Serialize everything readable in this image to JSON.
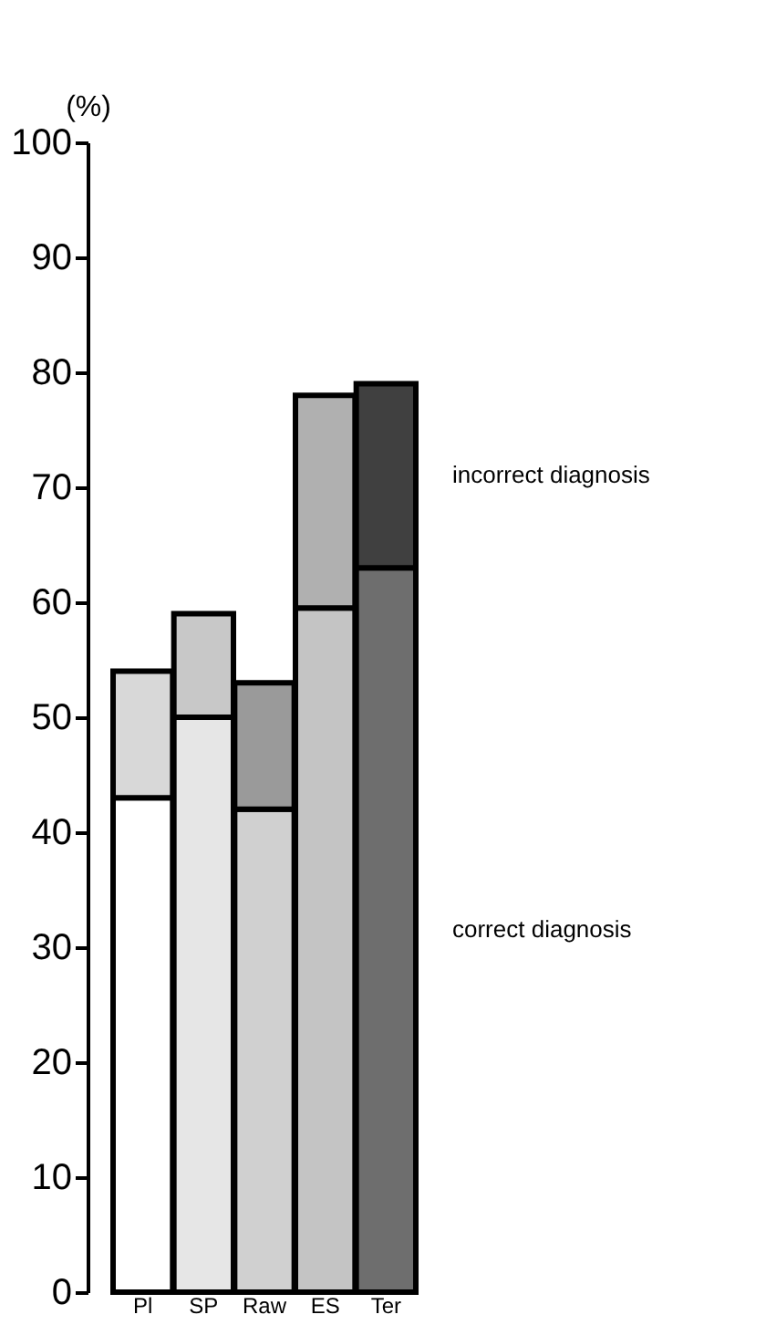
{
  "chart_data": {
    "type": "bar",
    "stacked": true,
    "ylabel": "(%)",
    "categories": [
      "Pl",
      "SP",
      "Raw",
      "ES",
      "Ter"
    ],
    "series": [
      {
        "name": "correct diagnosis",
        "colors": [
          "#ffffff",
          "#e6e6e6",
          "#d0d0d0",
          "#c4c4c4",
          "#6e6e6e"
        ],
        "values": [
          43,
          50,
          42,
          59.5,
          63
        ]
      },
      {
        "name": "incorrect diagnosis",
        "colors": [
          "#d8d8d8",
          "#c8c8c8",
          "#9a9a9a",
          "#b0b0b0",
          "#404040"
        ],
        "values": [
          11,
          9,
          11,
          18.5,
          16
        ]
      }
    ],
    "ylim": [
      0,
      100
    ],
    "yticks": [
      0,
      10,
      20,
      30,
      40,
      50,
      60,
      70,
      80,
      90,
      100
    ],
    "grid": false
  }
}
